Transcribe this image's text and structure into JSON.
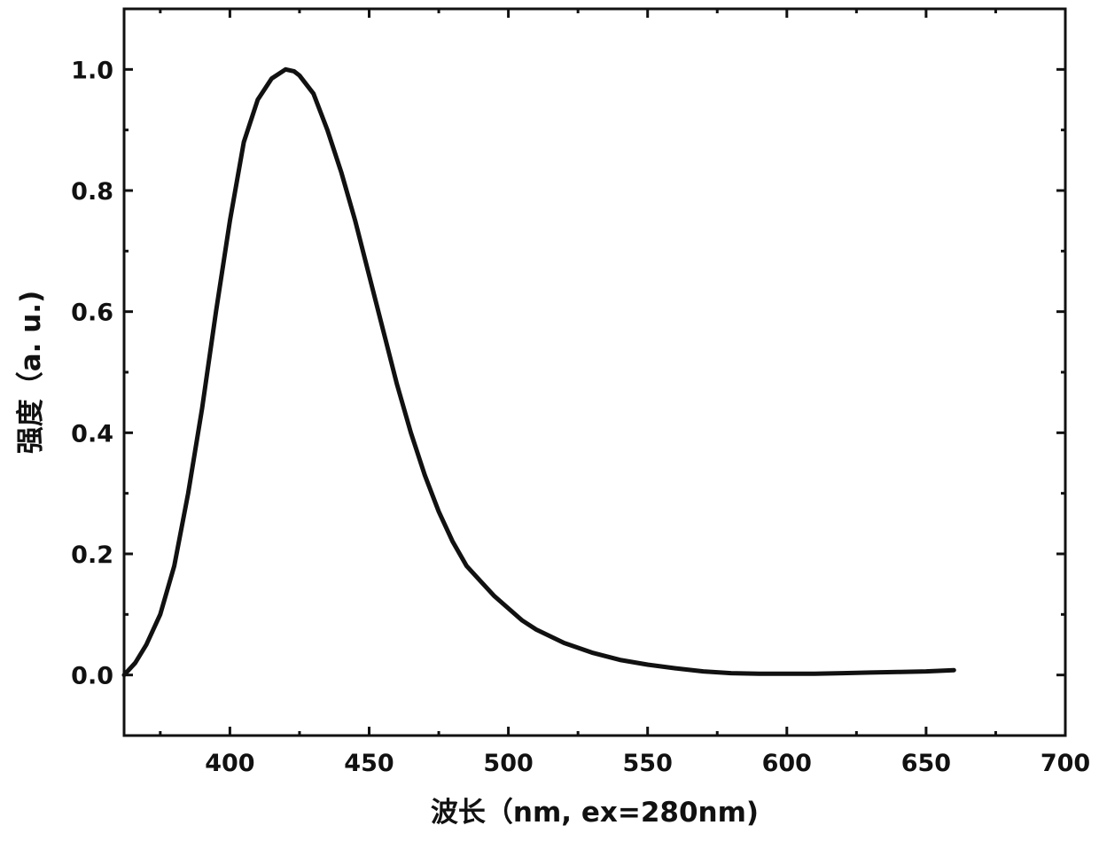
{
  "chart_data": {
    "type": "line",
    "xlabel": "波长（nm,  ex=280nm)",
    "ylabel": "强度（a. u.)",
    "xlim": [
      362,
      700
    ],
    "ylim": [
      -0.1,
      1.1
    ],
    "xticks": [
      400,
      450,
      500,
      550,
      600,
      650,
      700
    ],
    "xtick_labels": [
      "400",
      "450",
      "500",
      "550",
      "600",
      "650",
      "700"
    ],
    "yticks": [
      0.0,
      0.2,
      0.4,
      0.6,
      0.8,
      1.0
    ],
    "ytick_labels": [
      "0.0",
      "0.2",
      "0.4",
      "0.6",
      "0.8",
      "1.0"
    ],
    "grid": false,
    "legend": "none",
    "line_color": "#111111",
    "series": [
      {
        "x": [
          362,
          366,
          370,
          375,
          380,
          385,
          390,
          395,
          400,
          405,
          410,
          415,
          420,
          423,
          425,
          430,
          435,
          440,
          445,
          450,
          455,
          460,
          465,
          470,
          475,
          480,
          485,
          490,
          495,
          500,
          505,
          510,
          520,
          530,
          540,
          550,
          560,
          570,
          580,
          590,
          600,
          610,
          620,
          630,
          640,
          650,
          660
        ],
        "y": [
          0.0,
          0.02,
          0.05,
          0.1,
          0.18,
          0.3,
          0.44,
          0.6,
          0.75,
          0.88,
          0.95,
          0.985,
          1.0,
          0.997,
          0.99,
          0.96,
          0.9,
          0.83,
          0.75,
          0.66,
          0.57,
          0.48,
          0.4,
          0.33,
          0.27,
          0.22,
          0.18,
          0.155,
          0.13,
          0.11,
          0.09,
          0.075,
          0.053,
          0.037,
          0.025,
          0.017,
          0.011,
          0.006,
          0.003,
          0.002,
          0.002,
          0.002,
          0.003,
          0.004,
          0.005,
          0.006,
          0.008
        ]
      }
    ]
  }
}
